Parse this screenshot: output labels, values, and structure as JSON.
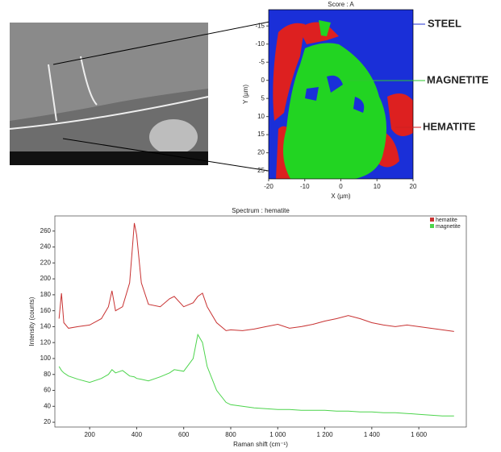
{
  "chart_data": [
    {
      "type": "map",
      "title": "Score : A",
      "xlabel": "X (µm)",
      "ylabel": "Y (µm)",
      "xlim": [
        -20,
        20
      ],
      "xticks": [
        -20,
        -10,
        0,
        10,
        20
      ],
      "ylim": [
        -19.5,
        27.2
      ],
      "yticks": [
        -15,
        -10,
        -5,
        0,
        5,
        10,
        15,
        20,
        25
      ],
      "y_inverted": true,
      "annotations": [
        {
          "text": "STEEL",
          "color": "#1f2fd0"
        },
        {
          "text": "MAGNETITE",
          "color": "#2ec82e"
        },
        {
          "text": "HEMATITE",
          "color": "#d02020"
        }
      ]
    },
    {
      "type": "line",
      "title": "Spectrum : hematite",
      "xlabel": "Raman shift (cm⁻¹)",
      "ylabel": "Intensity (counts)",
      "xlim": [
        52,
        1802
      ],
      "xticks": [
        200,
        400,
        600,
        800,
        {
          "value": 1000,
          "label": "1 000"
        },
        {
          "value": 1200,
          "label": "1 200"
        },
        {
          "value": 1400,
          "label": "1 400"
        },
        {
          "value": 1600,
          "label": "1 600"
        }
      ],
      "ylim": [
        14,
        279
      ],
      "yticks": [
        20,
        40,
        60,
        80,
        100,
        120,
        140,
        160,
        180,
        200,
        220,
        240,
        260
      ],
      "legend": "upper right",
      "x": [
        70,
        80,
        90,
        110,
        150,
        200,
        250,
        280,
        295,
        310,
        340,
        370,
        390,
        400,
        420,
        450,
        500,
        540,
        560,
        600,
        640,
        660,
        680,
        700,
        740,
        780,
        800,
        850,
        900,
        950,
        1000,
        1050,
        1100,
        1150,
        1200,
        1250,
        1300,
        1350,
        1400,
        1450,
        1500,
        1550,
        1600,
        1650,
        1700,
        1750
      ],
      "series": [
        {
          "name": "hematite",
          "color": "#c83232",
          "values": [
            150,
            182,
            145,
            138,
            140,
            142,
            150,
            165,
            185,
            160,
            165,
            195,
            270,
            255,
            195,
            168,
            165,
            175,
            178,
            165,
            170,
            178,
            182,
            165,
            145,
            135,
            136,
            135,
            137,
            140,
            143,
            138,
            140,
            143,
            147,
            150,
            154,
            150,
            145,
            142,
            140,
            142,
            140,
            138,
            136,
            134
          ]
        },
        {
          "name": "magnetite",
          "color": "#4cd44c",
          "values": [
            90,
            85,
            82,
            78,
            74,
            70,
            75,
            80,
            86,
            82,
            85,
            78,
            77,
            75,
            74,
            72,
            77,
            82,
            86,
            84,
            100,
            130,
            120,
            90,
            60,
            45,
            42,
            40,
            38,
            37,
            36,
            36,
            35,
            35,
            35,
            34,
            34,
            33,
            33,
            32,
            32,
            31,
            30,
            29,
            28,
            28
          ]
        }
      ]
    }
  ]
}
